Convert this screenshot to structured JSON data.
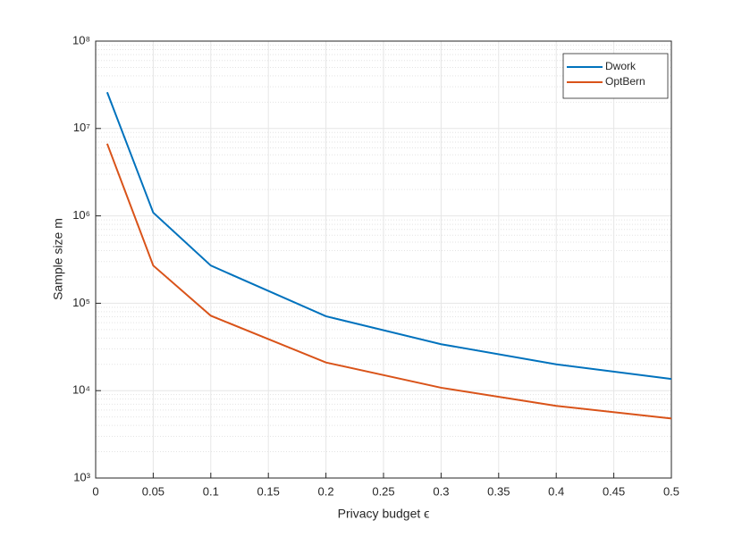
{
  "chart_data": {
    "type": "line",
    "xlabel": "Privacy budget ϵ",
    "ylabel": "Sample size m",
    "x": [
      0.01,
      0.05,
      0.1,
      0.2,
      0.3,
      0.4,
      0.5
    ],
    "series": [
      {
        "name": "Dwork",
        "color": "#0072bd",
        "values": [
          26000000,
          1090000,
          270000,
          71000,
          34000,
          20000,
          13600
        ]
      },
      {
        "name": "OptBern",
        "color": "#d95319",
        "values": [
          6700000,
          270000,
          72000,
          21000,
          10800,
          6700,
          4800
        ]
      }
    ],
    "xlim": [
      0,
      0.5
    ],
    "xticks": [
      0,
      0.05,
      0.1,
      0.15,
      0.2,
      0.25,
      0.3,
      0.35,
      0.4,
      0.45,
      0.5
    ],
    "ylim": [
      1000,
      100000000
    ],
    "yticks": [
      {
        "value": 1000,
        "label": "10³"
      },
      {
        "value": 10000,
        "label": "10⁴"
      },
      {
        "value": 100000,
        "label": "10⁵"
      },
      {
        "value": 1000000,
        "label": "10⁶"
      },
      {
        "value": 10000000,
        "label": "10⁷"
      },
      {
        "value": 100000000,
        "label": "10⁸"
      }
    ],
    "ylog": true,
    "grid": true,
    "minor_grid": true,
    "legend": "northeast"
  }
}
